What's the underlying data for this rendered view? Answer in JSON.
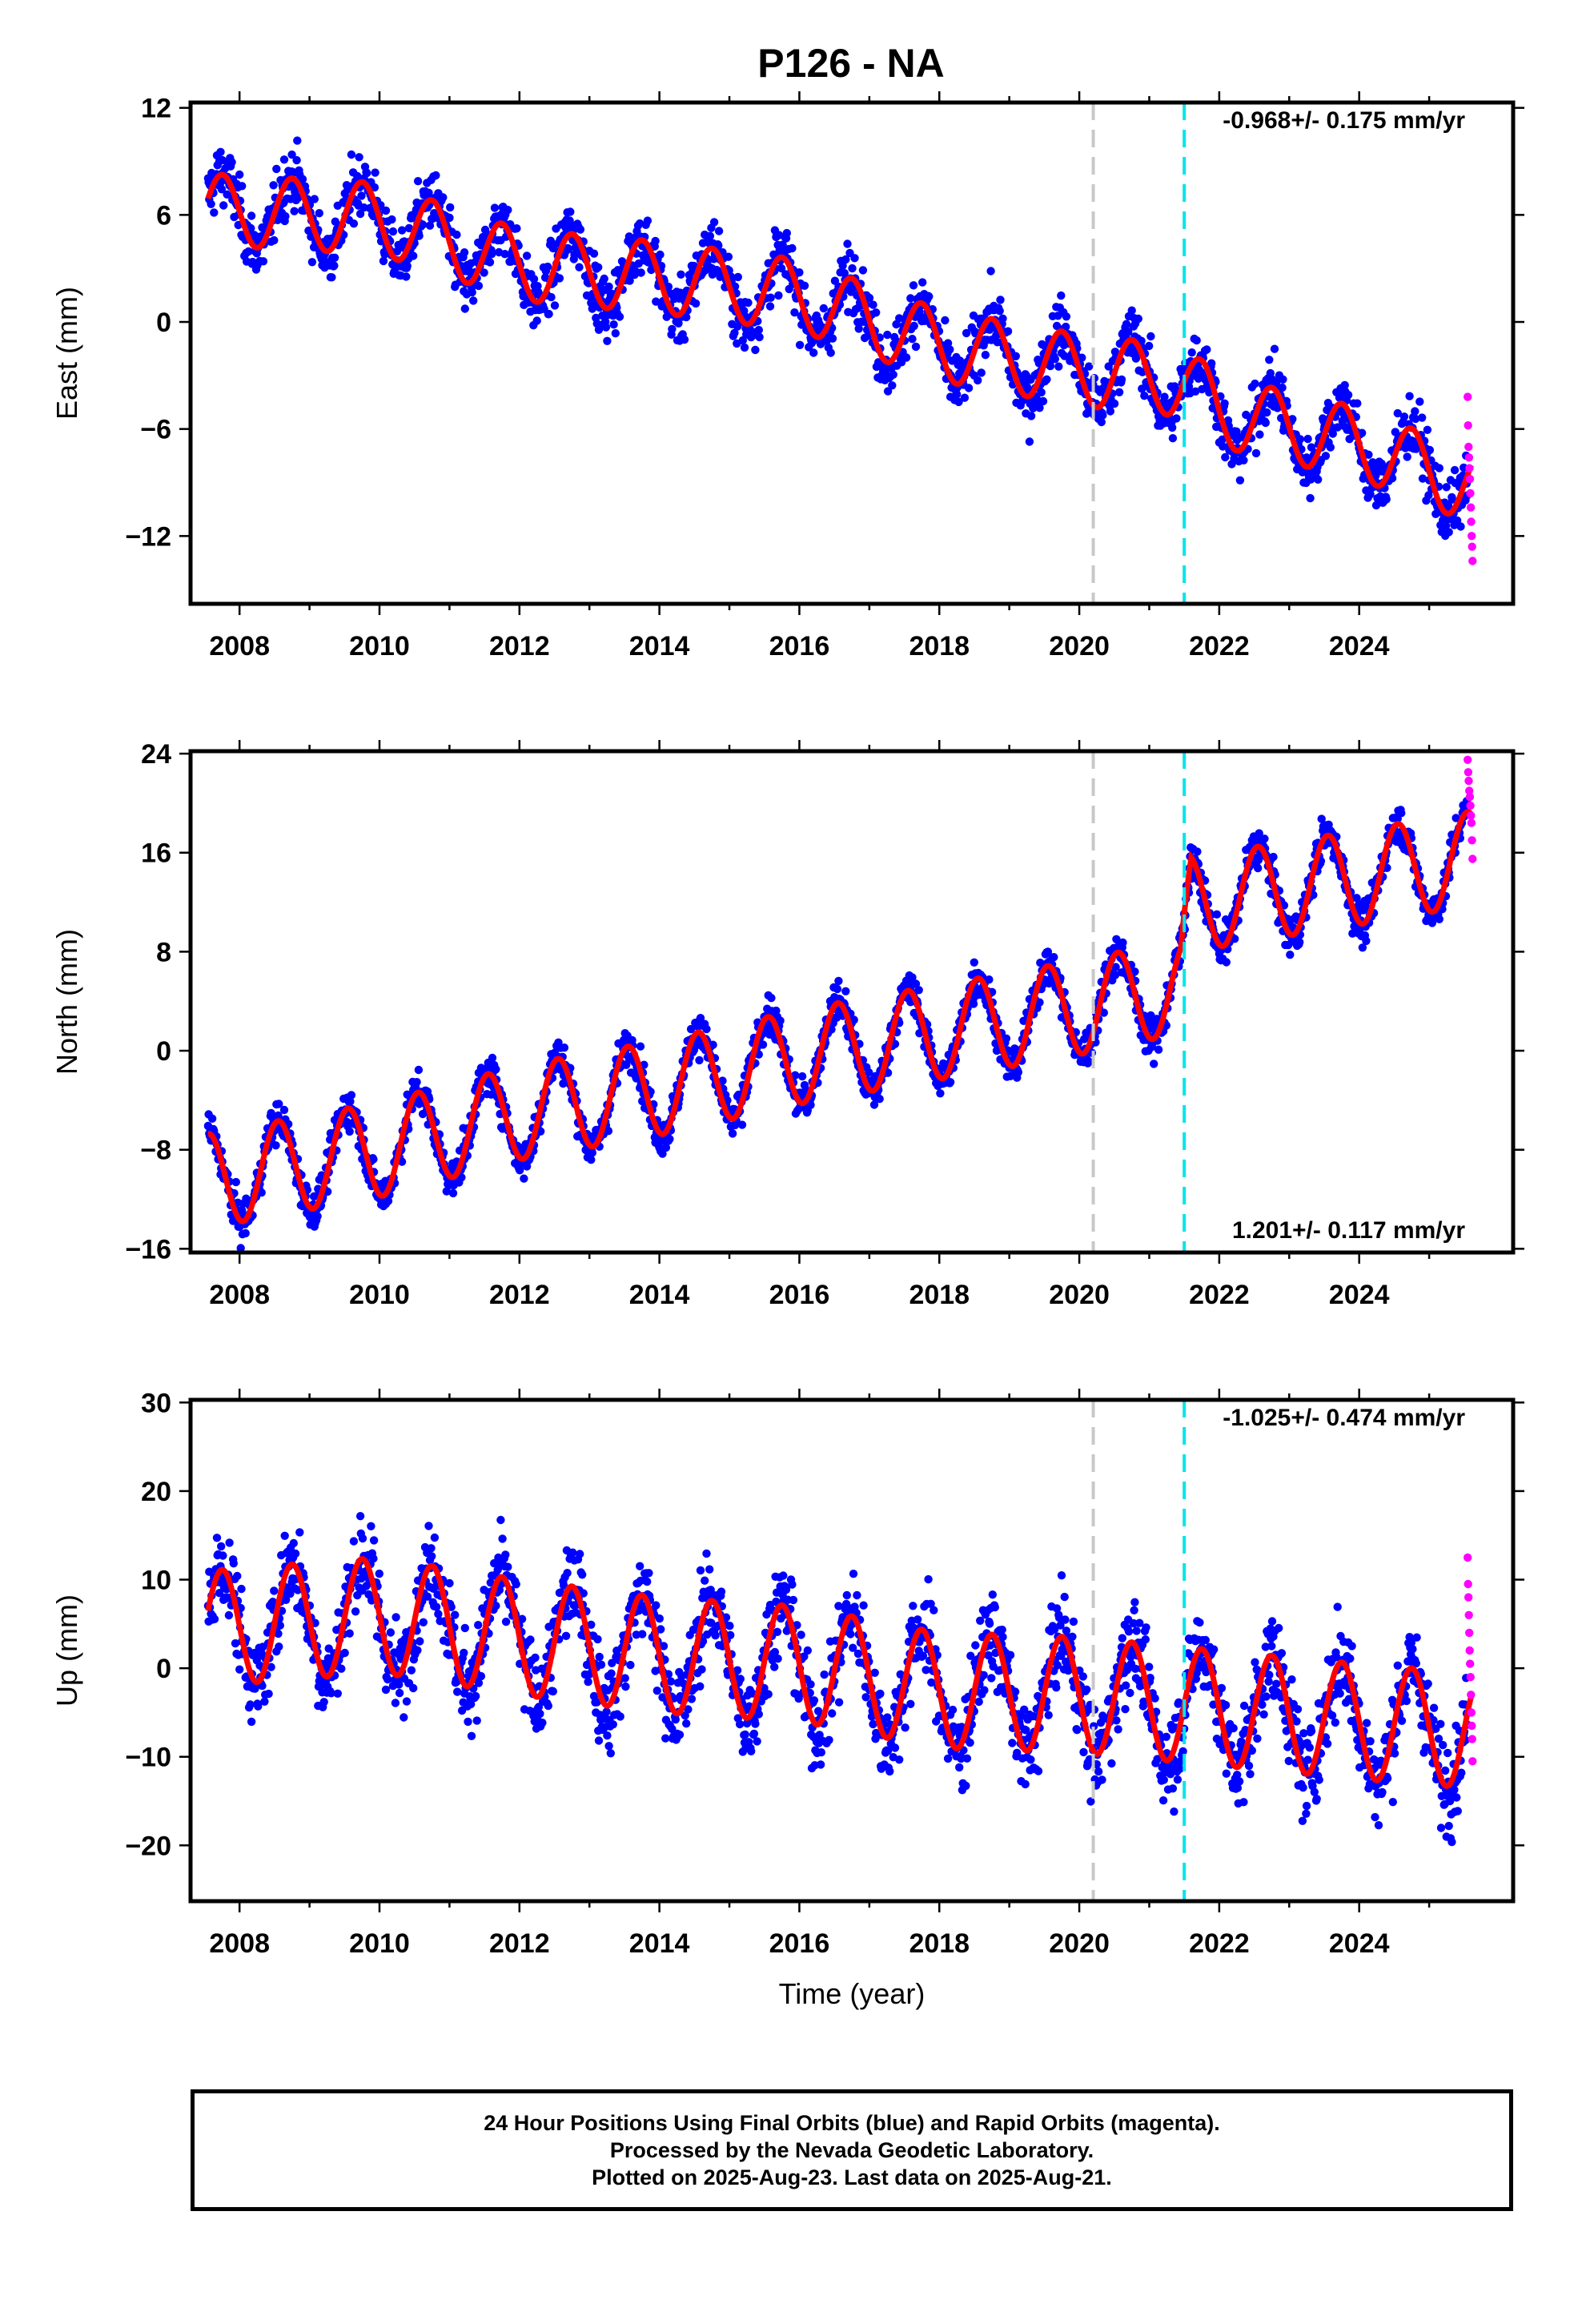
{
  "chart_data": [
    {
      "type": "scatter",
      "title": "P126 - NA",
      "ylabel": "East (mm)",
      "xlabel": "",
      "xlim": [
        2007.3,
        2026.2
      ],
      "ylim": [
        -15.8,
        12.3
      ],
      "yticks": [
        12,
        6,
        0,
        -6,
        -12
      ],
      "xticks": [
        2008,
        2010,
        2012,
        2014,
        2016,
        2018,
        2020,
        2022,
        2024
      ],
      "rate_annotation": "-0.968+/- 0.175 mm/yr",
      "rate_position": "top-right",
      "reference_lines": [
        {
          "x": 2020.2,
          "color": "#c8c8c8",
          "style": "dashed"
        },
        {
          "x": 2021.5,
          "color": "#00e5ee",
          "style": "dashed"
        }
      ],
      "series": [
        {
          "type": "scatter",
          "color": "#0000ff",
          "x_range": [
            2007.55,
            2025.55
          ],
          "trend": {
            "x": [
              2007.55,
              2010,
              2012,
              2014,
              2016,
              2018,
              2020,
              2021.5,
              2022,
              2024,
              2025.55
            ],
            "y": [
              6.3,
              5.8,
              3.2,
              2.5,
              1.5,
              -1.3,
              -2.7,
              -3.3,
              -5.0,
              -6.8,
              -9.2
            ]
          },
          "amplitude": 2.0,
          "noise": 1.5
        },
        {
          "type": "scatter",
          "color": "#ff00ff",
          "x_range": [
            2025.55,
            2025.62
          ],
          "y_values": [
            -4.2,
            -5.8,
            -7.0,
            -7.6,
            -8.2,
            -8.8,
            -9.6,
            -10.4,
            -11.2,
            -12.0,
            -12.6,
            -13.4
          ]
        },
        {
          "type": "line",
          "color": "#ff0000",
          "description": "seasonal fit",
          "x_range": [
            2007.55,
            2025.6
          ]
        }
      ]
    },
    {
      "type": "scatter",
      "ylabel": "North (mm)",
      "xlabel": "",
      "xlim": [
        2007.3,
        2026.2
      ],
      "ylim": [
        -16.3,
        24.2
      ],
      "yticks": [
        24,
        16,
        8,
        0,
        -8,
        -16
      ],
      "xticks": [
        2008,
        2010,
        2012,
        2014,
        2016,
        2018,
        2020,
        2022,
        2024
      ],
      "rate_annotation": "1.201+/- 0.117 mm/yr",
      "rate_position": "bottom-right",
      "reference_lines": [
        {
          "x": 2020.2,
          "color": "#c8c8c8",
          "style": "dashed"
        },
        {
          "x": 2021.5,
          "color": "#00e5ee",
          "style": "dashed"
        }
      ],
      "series": [
        {
          "type": "scatter",
          "color": "#0000ff",
          "x_range": [
            2007.55,
            2025.55
          ],
          "trend": {
            "x": [
              2007.55,
              2010,
              2012,
              2014,
              2016,
              2018,
              2020,
              2021.45,
              2021.6,
              2022,
              2024,
              2025.55
            ],
            "y": [
              -10.5,
              -8.0,
              -5.0,
              -3.0,
              -0.5,
              1.5,
              3.5,
              5.2,
              12.0,
              12.2,
              14.0,
              15.5
            ]
          },
          "amplitude": 3.8,
          "noise": 1.4
        },
        {
          "type": "scatter",
          "color": "#ff00ff",
          "x_range": [
            2025.55,
            2025.62
          ],
          "y_values": [
            23.5,
            22.5,
            21.8,
            21.0,
            20.5,
            19.8,
            19.0,
            18.4,
            17.0,
            15.5
          ]
        },
        {
          "type": "line",
          "color": "#ff0000",
          "description": "seasonal fit",
          "x_range": [
            2007.55,
            2025.6
          ]
        }
      ]
    },
    {
      "type": "scatter",
      "ylabel": "Up (mm)",
      "xlabel": "Time (year)",
      "xlim": [
        2007.3,
        2026.2
      ],
      "ylim": [
        -26.3,
        30.3
      ],
      "yticks": [
        30,
        20,
        10,
        0,
        -10,
        -20
      ],
      "xticks": [
        2008,
        2010,
        2012,
        2014,
        2016,
        2018,
        2020,
        2022,
        2024
      ],
      "rate_annotation": "-1.025+/- 0.474 mm/yr",
      "rate_position": "top-right",
      "reference_lines": [
        {
          "x": 2020.2,
          "color": "#c8c8c8",
          "style": "dashed"
        },
        {
          "x": 2021.5,
          "color": "#00e5ee",
          "style": "dashed"
        }
      ],
      "series": [
        {
          "type": "scatter",
          "color": "#0000ff",
          "x_range": [
            2007.55,
            2025.55
          ],
          "trend": {
            "x": [
              2007.55,
              2010,
              2012,
              2014,
              2016,
              2018,
              2020,
              2022,
              2024,
              2025.55
            ],
            "y": [
              4.5,
              6.0,
              3.5,
              1.5,
              0.5,
              -2.5,
              -3.0,
              -4.5,
              -6.0,
              -7.0
            ]
          },
          "amplitude": 6.5,
          "noise": 4.5
        },
        {
          "type": "scatter",
          "color": "#ff00ff",
          "x_range": [
            2025.55,
            2025.62
          ],
          "y_values": [
            12.5,
            9.5,
            8.0,
            6.0,
            4.0,
            2.0,
            0.5,
            -1.0,
            -3.0,
            -5.0,
            -6.5,
            -8.0,
            -10.5
          ]
        },
        {
          "type": "line",
          "color": "#ff0000",
          "description": "seasonal fit",
          "x_range": [
            2007.55,
            2025.6
          ]
        }
      ]
    }
  ],
  "footer": {
    "line1": "24 Hour Positions Using Final Orbits (blue) and Rapid Orbits (magenta).",
    "line2": "Processed by the Nevada Geodetic Laboratory.",
    "line3": "Plotted on 2025-Aug-23. Last data on 2025-Aug-21."
  }
}
